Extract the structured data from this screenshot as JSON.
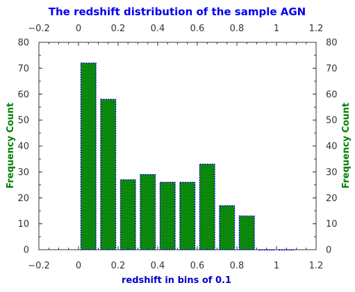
{
  "chart_data": {
    "type": "bar",
    "title": "The redshift distribution of the sample AGN",
    "xlabel": "redshift in bins of 0.1",
    "ylabel": "Frequency Count",
    "ylabel_right": "Frequency Count",
    "x": [
      0.05,
      0.15,
      0.25,
      0.35,
      0.45,
      0.55,
      0.65,
      0.75,
      0.85,
      0.95,
      1.05
    ],
    "values": [
      72,
      58,
      27,
      29,
      26,
      26,
      33,
      17,
      13,
      0,
      0
    ],
    "bin_width": 0.1,
    "xlim": [
      -0.2,
      1.2
    ],
    "ylim": [
      0,
      80
    ],
    "xticks": [
      "−0.2",
      "0",
      "0.2",
      "0.4",
      "0.6",
      "0.8",
      "1",
      "1.2"
    ],
    "yticks": [
      "0",
      "10",
      "20",
      "30",
      "40",
      "50",
      "60",
      "70",
      "80"
    ],
    "grid": false,
    "colors": {
      "title": "#0000ee",
      "xlabel": "#0000cc",
      "ylabel": "#008000",
      "bar_fill": "#008000",
      "bar_edge": "#0000cc",
      "axis": "#333333"
    }
  }
}
